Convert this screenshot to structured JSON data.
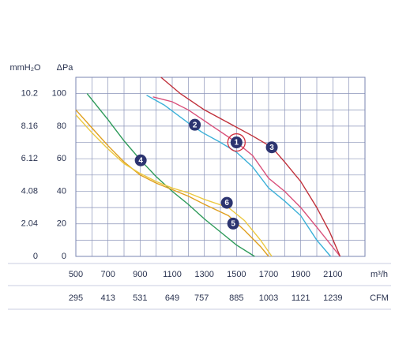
{
  "chart_data": {
    "type": "line",
    "y2_label": "mmH₂O",
    "y_label": "ΔPa",
    "x_label": "m³/h",
    "x2_label": "CFM",
    "xlim": [
      500,
      2300
    ],
    "xticks": [
      500,
      700,
      900,
      1100,
      1300,
      1500,
      1700,
      1900,
      2100
    ],
    "x2lim": [
      295,
      1357
    ],
    "x2ticks": [
      295,
      413,
      531,
      649,
      757,
      885,
      1003,
      1121,
      1239
    ],
    "ylim": [
      0,
      110
    ],
    "yticks": [
      0,
      20,
      40,
      60,
      80,
      100
    ],
    "y2lim": [
      0,
      11.22
    ],
    "y2ticks": [
      0,
      2.04,
      4.08,
      6.12,
      8.16,
      10.2
    ],
    "grid": true,
    "series": [
      {
        "name": "1",
        "color": "#d9507a",
        "x": [
          980,
          1100,
          1200,
          1350,
          1500,
          1600,
          1700,
          1800,
          1900,
          2000,
          2145
        ],
        "values": [
          98,
          95,
          90,
          80,
          70,
          62,
          48,
          40,
          30,
          18,
          0
        ]
      },
      {
        "name": "2",
        "color": "#3bb0d8",
        "x": [
          940,
          1050,
          1200,
          1290,
          1400,
          1500,
          1600,
          1700,
          1800,
          1900,
          2000,
          2086
        ],
        "values": [
          99,
          93,
          82,
          76,
          70,
          64,
          55,
          42,
          34,
          25,
          10,
          0
        ]
      },
      {
        "name": "3",
        "color": "#c0303a",
        "x": [
          1030,
          1150,
          1300,
          1450,
          1600,
          1720,
          1800,
          1900,
          2000,
          2080,
          2145
        ],
        "values": [
          110,
          100,
          90,
          82,
          74,
          67,
          58,
          46,
          30,
          15,
          0
        ]
      },
      {
        "name": "4",
        "color": "#2e9a5a",
        "x": [
          570,
          700,
          800,
          904,
          1000,
          1100,
          1200,
          1300,
          1400,
          1500,
          1613
        ],
        "values": [
          100,
          84,
          71,
          59,
          49,
          40,
          32,
          23,
          15,
          7,
          0
        ]
      },
      {
        "name": "5",
        "color": "#e0a020",
        "x": [
          500,
          600,
          700,
          800,
          900,
          1000,
          1100,
          1200,
          1300,
          1450,
          1550,
          1650,
          1700
        ],
        "values": [
          90,
          79,
          68,
          58,
          50,
          45,
          41,
          37,
          32,
          25,
          16,
          6,
          0
        ]
      },
      {
        "name": "6",
        "color": "#ecc840",
        "x": [
          500,
          600,
          700,
          800,
          900,
          1000,
          1100,
          1200,
          1300,
          1450,
          1550,
          1650,
          1720
        ],
        "values": [
          87,
          76,
          66,
          57,
          51,
          46,
          42,
          39,
          35,
          30,
          22,
          10,
          0
        ]
      }
    ]
  }
}
